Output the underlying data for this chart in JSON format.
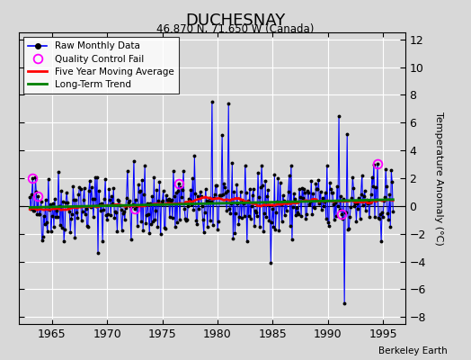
{
  "title": "DUCHESNAY",
  "subtitle": "46.870 N, 71.650 W (Canada)",
  "ylabel": "Temperature Anomaly (°C)",
  "xlim": [
    1962.0,
    1997.0
  ],
  "ylim": [
    -8.5,
    12.5
  ],
  "yticks": [
    -8,
    -6,
    -4,
    -2,
    0,
    2,
    4,
    6,
    8,
    10,
    12
  ],
  "xticks": [
    1965,
    1970,
    1975,
    1980,
    1985,
    1990,
    1995
  ],
  "bg_color": "#d8d8d8",
  "grid_color": "white",
  "line_color": "blue",
  "ma_color": "red",
  "trend_color": "green",
  "bar_color": "#9999ee",
  "annotation": "Berkeley Earth",
  "seed": 42,
  "qc_fail_years": [
    1963.25,
    1963.75,
    1972.5,
    1976.5,
    1991.25,
    1994.5
  ],
  "spike_1979_val": 7.5,
  "spike_1981_val": 7.4,
  "spike_1991_val": 6.5,
  "spike_1991b_val": 5.2,
  "spike_1994_val": -7.0
}
